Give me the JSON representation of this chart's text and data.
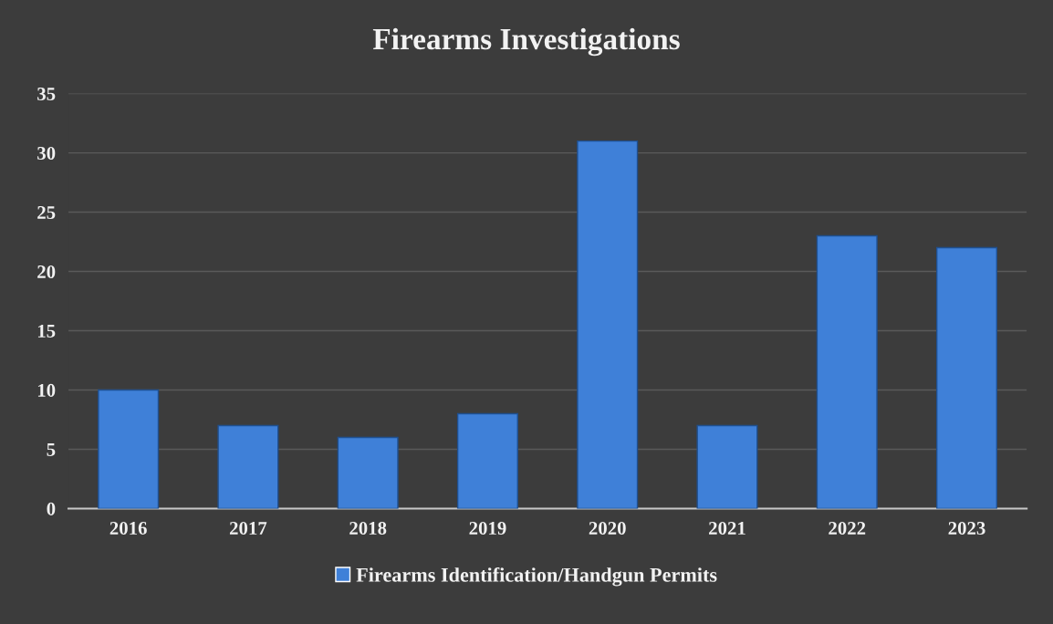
{
  "chart_data": {
    "type": "bar",
    "title": "Firearms Investigations",
    "categories": [
      "2016",
      "2017",
      "2018",
      "2019",
      "2020",
      "2021",
      "2022",
      "2023"
    ],
    "series": [
      {
        "name": "Firearms Identification/Handgun Permits",
        "color": "#3f80d8",
        "values": [
          10,
          7,
          6,
          8,
          31,
          7,
          23,
          22
        ]
      }
    ],
    "ylim": [
      0,
      35
    ],
    "yticks": [
      0,
      5,
      10,
      15,
      20,
      25,
      30,
      35
    ],
    "grid": "y",
    "legend": "bottom"
  }
}
